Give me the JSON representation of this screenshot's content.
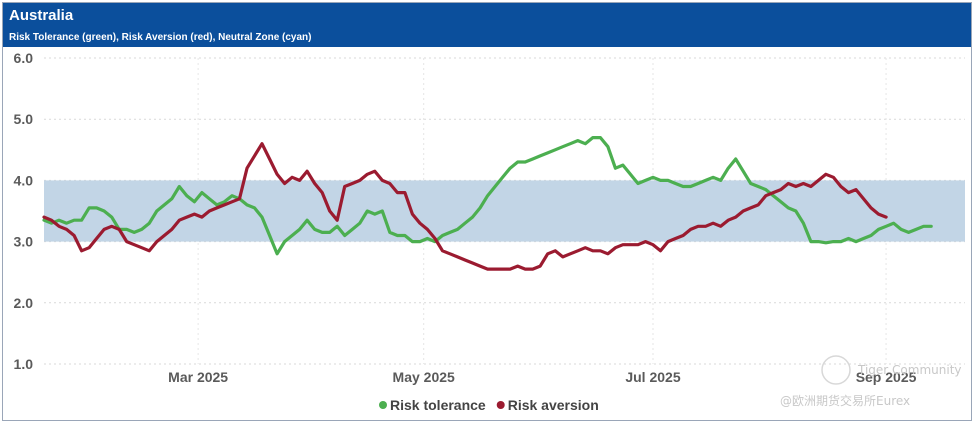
{
  "header": {
    "title": "Australia",
    "subtitle": "Risk Tolerance (green), Risk Aversion (red), Neutral Zone (cyan)"
  },
  "watermark": {
    "line1": "Tiger Community",
    "line2": "@欧洲期货交易所Eurex"
  },
  "chart_data": {
    "type": "line",
    "title": "Australia",
    "subtitle": "Risk Tolerance (green), Risk Aversion (red), Neutral Zone (cyan)",
    "ylim": [
      1.0,
      6.0
    ],
    "yticks": [
      "6.0",
      "5.0",
      "4.0",
      "3.0",
      "2.0",
      "1.0"
    ],
    "x_domain": [
      0,
      245
    ],
    "xticks": [
      {
        "label": "Mar 2025",
        "x": 41
      },
      {
        "label": "May 2025",
        "x": 101
      },
      {
        "label": "Jul 2025",
        "x": 162
      },
      {
        "label": "Sep 2025",
        "x": 224
      }
    ],
    "neutral_zone": {
      "lower": 3.0,
      "upper": 4.0,
      "color": "#c2d5e6"
    },
    "grid": true,
    "legend_position": "bottom-center",
    "series": [
      {
        "name": "Risk tolerance",
        "color": "#4caf50",
        "points": [
          [
            0,
            3.35
          ],
          [
            2,
            3.3
          ],
          [
            4,
            3.35
          ],
          [
            6,
            3.3
          ],
          [
            8,
            3.35
          ],
          [
            10,
            3.35
          ],
          [
            12,
            3.55
          ],
          [
            14,
            3.55
          ],
          [
            16,
            3.5
          ],
          [
            18,
            3.4
          ],
          [
            20,
            3.2
          ],
          [
            22,
            3.2
          ],
          [
            24,
            3.15
          ],
          [
            26,
            3.2
          ],
          [
            28,
            3.3
          ],
          [
            30,
            3.5
          ],
          [
            32,
            3.6
          ],
          [
            34,
            3.7
          ],
          [
            36,
            3.9
          ],
          [
            38,
            3.75
          ],
          [
            40,
            3.65
          ],
          [
            42,
            3.8
          ],
          [
            44,
            3.7
          ],
          [
            46,
            3.6
          ],
          [
            48,
            3.65
          ],
          [
            50,
            3.75
          ],
          [
            52,
            3.7
          ],
          [
            54,
            3.6
          ],
          [
            56,
            3.55
          ],
          [
            58,
            3.4
          ],
          [
            60,
            3.1
          ],
          [
            62,
            2.8
          ],
          [
            64,
            3.0
          ],
          [
            66,
            3.1
          ],
          [
            68,
            3.2
          ],
          [
            70,
            3.35
          ],
          [
            72,
            3.2
          ],
          [
            74,
            3.15
          ],
          [
            76,
            3.15
          ],
          [
            78,
            3.25
          ],
          [
            80,
            3.1
          ],
          [
            82,
            3.2
          ],
          [
            84,
            3.3
          ],
          [
            86,
            3.5
          ],
          [
            88,
            3.45
          ],
          [
            90,
            3.5
          ],
          [
            92,
            3.15
          ],
          [
            94,
            3.1
          ],
          [
            96,
            3.1
          ],
          [
            98,
            3.0
          ],
          [
            100,
            3.0
          ],
          [
            102,
            3.05
          ],
          [
            104,
            3.0
          ],
          [
            106,
            3.1
          ],
          [
            108,
            3.15
          ],
          [
            110,
            3.2
          ],
          [
            112,
            3.3
          ],
          [
            114,
            3.4
          ],
          [
            116,
            3.55
          ],
          [
            118,
            3.75
          ],
          [
            120,
            3.9
          ],
          [
            122,
            4.05
          ],
          [
            124,
            4.2
          ],
          [
            126,
            4.3
          ],
          [
            128,
            4.3
          ],
          [
            130,
            4.35
          ],
          [
            132,
            4.4
          ],
          [
            134,
            4.45
          ],
          [
            136,
            4.5
          ],
          [
            138,
            4.55
          ],
          [
            140,
            4.6
          ],
          [
            142,
            4.65
          ],
          [
            144,
            4.6
          ],
          [
            146,
            4.7
          ],
          [
            148,
            4.7
          ],
          [
            150,
            4.55
          ],
          [
            152,
            4.2
          ],
          [
            154,
            4.25
          ],
          [
            156,
            4.1
          ],
          [
            158,
            3.95
          ],
          [
            160,
            4.0
          ],
          [
            162,
            4.05
          ],
          [
            164,
            4.0
          ],
          [
            166,
            4.0
          ],
          [
            168,
            3.95
          ],
          [
            170,
            3.9
          ],
          [
            172,
            3.9
          ],
          [
            174,
            3.95
          ],
          [
            176,
            4.0
          ],
          [
            178,
            4.05
          ],
          [
            180,
            4.0
          ],
          [
            182,
            4.2
          ],
          [
            184,
            4.35
          ],
          [
            186,
            4.15
          ],
          [
            188,
            3.95
          ],
          [
            190,
            3.9
          ],
          [
            192,
            3.85
          ],
          [
            194,
            3.75
          ],
          [
            196,
            3.65
          ],
          [
            198,
            3.55
          ],
          [
            200,
            3.5
          ],
          [
            202,
            3.3
          ],
          [
            204,
            3.0
          ],
          [
            206,
            3.0
          ],
          [
            208,
            2.98
          ],
          [
            210,
            3.0
          ],
          [
            212,
            3.0
          ],
          [
            214,
            3.05
          ],
          [
            216,
            3.0
          ],
          [
            218,
            3.05
          ],
          [
            220,
            3.1
          ],
          [
            222,
            3.2
          ],
          [
            224,
            3.25
          ],
          [
            226,
            3.3
          ],
          [
            228,
            3.2
          ],
          [
            230,
            3.15
          ],
          [
            232,
            3.2
          ],
          [
            234,
            3.25
          ],
          [
            236,
            3.25
          ]
        ]
      },
      {
        "name": "Risk aversion",
        "color": "#9b1b30",
        "points": [
          [
            0,
            3.4
          ],
          [
            2,
            3.35
          ],
          [
            4,
            3.25
          ],
          [
            6,
            3.2
          ],
          [
            8,
            3.1
          ],
          [
            10,
            2.85
          ],
          [
            12,
            2.9
          ],
          [
            14,
            3.05
          ],
          [
            16,
            3.2
          ],
          [
            18,
            3.25
          ],
          [
            20,
            3.2
          ],
          [
            22,
            3.0
          ],
          [
            24,
            2.95
          ],
          [
            26,
            2.9
          ],
          [
            28,
            2.85
          ],
          [
            30,
            3.0
          ],
          [
            32,
            3.1
          ],
          [
            34,
            3.2
          ],
          [
            36,
            3.35
          ],
          [
            38,
            3.4
          ],
          [
            40,
            3.45
          ],
          [
            42,
            3.4
          ],
          [
            44,
            3.5
          ],
          [
            46,
            3.55
          ],
          [
            48,
            3.6
          ],
          [
            50,
            3.65
          ],
          [
            52,
            3.7
          ],
          [
            54,
            4.2
          ],
          [
            56,
            4.4
          ],
          [
            58,
            4.6
          ],
          [
            60,
            4.35
          ],
          [
            62,
            4.1
          ],
          [
            64,
            3.95
          ],
          [
            66,
            4.05
          ],
          [
            68,
            4.0
          ],
          [
            70,
            4.15
          ],
          [
            72,
            3.95
          ],
          [
            74,
            3.8
          ],
          [
            76,
            3.5
          ],
          [
            78,
            3.35
          ],
          [
            80,
            3.9
          ],
          [
            82,
            3.95
          ],
          [
            84,
            4.0
          ],
          [
            86,
            4.1
          ],
          [
            88,
            4.15
          ],
          [
            90,
            4.0
          ],
          [
            92,
            3.95
          ],
          [
            94,
            3.8
          ],
          [
            96,
            3.8
          ],
          [
            98,
            3.45
          ],
          [
            100,
            3.3
          ],
          [
            102,
            3.2
          ],
          [
            104,
            3.05
          ],
          [
            106,
            2.85
          ],
          [
            108,
            2.8
          ],
          [
            110,
            2.75
          ],
          [
            112,
            2.7
          ],
          [
            114,
            2.65
          ],
          [
            116,
            2.6
          ],
          [
            118,
            2.55
          ],
          [
            120,
            2.55
          ],
          [
            122,
            2.55
          ],
          [
            124,
            2.55
          ],
          [
            126,
            2.6
          ],
          [
            128,
            2.55
          ],
          [
            130,
            2.55
          ],
          [
            132,
            2.6
          ],
          [
            134,
            2.8
          ],
          [
            136,
            2.85
          ],
          [
            138,
            2.75
          ],
          [
            140,
            2.8
          ],
          [
            142,
            2.85
          ],
          [
            144,
            2.9
          ],
          [
            146,
            2.85
          ],
          [
            148,
            2.85
          ],
          [
            150,
            2.8
          ],
          [
            152,
            2.9
          ],
          [
            154,
            2.95
          ],
          [
            156,
            2.95
          ],
          [
            158,
            2.95
          ],
          [
            160,
            3.0
          ],
          [
            162,
            2.95
          ],
          [
            164,
            2.85
          ],
          [
            166,
            3.0
          ],
          [
            168,
            3.05
          ],
          [
            170,
            3.1
          ],
          [
            172,
            3.2
          ],
          [
            174,
            3.25
          ],
          [
            176,
            3.25
          ],
          [
            178,
            3.3
          ],
          [
            180,
            3.25
          ],
          [
            182,
            3.35
          ],
          [
            184,
            3.4
          ],
          [
            186,
            3.5
          ],
          [
            188,
            3.55
          ],
          [
            190,
            3.6
          ],
          [
            192,
            3.75
          ],
          [
            194,
            3.8
          ],
          [
            196,
            3.85
          ],
          [
            198,
            3.95
          ],
          [
            200,
            3.9
          ],
          [
            202,
            3.95
          ],
          [
            204,
            3.9
          ],
          [
            206,
            4.0
          ],
          [
            208,
            4.1
          ],
          [
            210,
            4.05
          ],
          [
            212,
            3.9
          ],
          [
            214,
            3.8
          ],
          [
            216,
            3.85
          ],
          [
            218,
            3.7
          ],
          [
            220,
            3.55
          ],
          [
            222,
            3.45
          ],
          [
            224,
            3.4
          ]
        ]
      }
    ]
  }
}
